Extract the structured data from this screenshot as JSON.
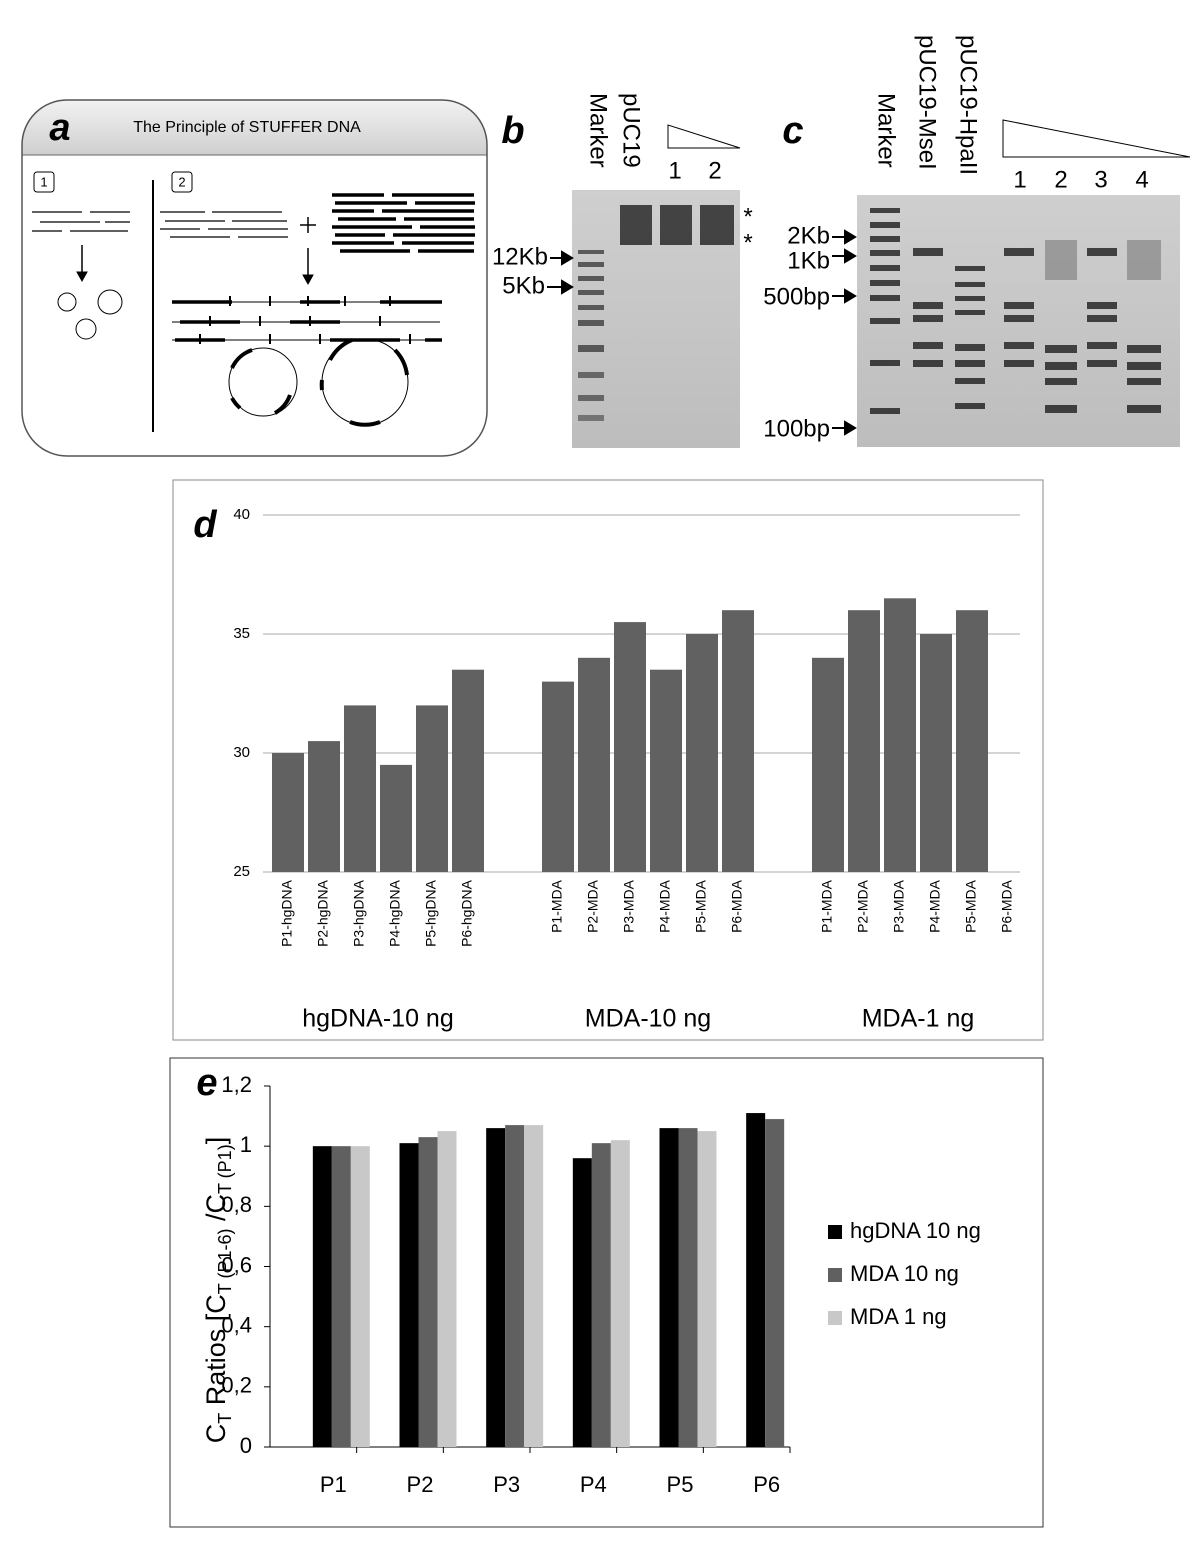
{
  "panels": {
    "a": {
      "letter": "a",
      "title": "The Principle of STUFFER DNA",
      "steps": [
        "1",
        "2"
      ]
    },
    "b": {
      "letter": "b",
      "lanes": [
        "Marker",
        "pUC19",
        "1",
        "2"
      ],
      "markers": [
        "12Kb",
        "5Kb"
      ],
      "stars": [
        "*",
        "*"
      ]
    },
    "c": {
      "letter": "c",
      "lanes": [
        "Marker",
        "pUC19-MseI",
        "pUC19-HpaII",
        "1",
        "2",
        "3",
        "4"
      ],
      "markers": [
        "2Kb",
        "1Kb",
        "500bp",
        "100bp"
      ]
    }
  },
  "chart_data": [
    {
      "type": "bar",
      "label": "d",
      "color": "#616161",
      "grid": true,
      "ylim": [
        25,
        40
      ],
      "yticks": [
        25,
        30,
        35,
        40
      ],
      "groups": [
        {
          "name": "hgDNA-10 ng",
          "categories": [
            "P1-hgDNA",
            "P2-hgDNA",
            "P3-hgDNA",
            "P4-hgDNA",
            "P5-hgDNA",
            "P6-hgDNA"
          ],
          "values": [
            30,
            30.5,
            32,
            29.5,
            32,
            33.5
          ]
        },
        {
          "name": "MDA-10 ng",
          "categories": [
            "P1-MDA",
            "P2-MDA",
            "P3-MDA",
            "P4-MDA",
            "P5-MDA",
            "P6-MDA"
          ],
          "values": [
            33,
            34,
            35.5,
            33.5,
            35,
            36
          ]
        },
        {
          "name": "MDA-1 ng",
          "categories": [
            "P1-MDA",
            "P2-MDA",
            "P3-MDA",
            "P4-MDA",
            "P5-MDA",
            "P6-MDA"
          ],
          "values": [
            34,
            36,
            36.5,
            35,
            36,
            null
          ]
        }
      ]
    },
    {
      "type": "bar",
      "label": "e",
      "grid": false,
      "ylabel": [
        "C",
        "T",
        " Ratios [C",
        "T (P1-6)",
        " /C",
        "T (P1)",
        "]"
      ],
      "ylim": [
        0,
        1.2
      ],
      "yticks": [
        0,
        {
          "value": 0.2,
          "label": "0,2"
        },
        {
          "value": 0.4,
          "label": "0,4"
        },
        {
          "value": 0.6,
          "label": "0,6"
        },
        {
          "value": 0.8,
          "label": "0,8"
        },
        1,
        {
          "value": 1.2,
          "label": "1,2"
        }
      ],
      "categories": [
        "P1",
        "P2",
        "P3",
        "P4",
        "P5",
        "P6"
      ],
      "legend": "right",
      "series": [
        {
          "name": "hgDNA 10 ng",
          "color": "#000000",
          "values": [
            1.0,
            1.01,
            1.06,
            0.96,
            1.06,
            1.11
          ]
        },
        {
          "name": "MDA 10 ng",
          "color": "#606060",
          "values": [
            1.0,
            1.03,
            1.07,
            1.01,
            1.06,
            1.09
          ]
        },
        {
          "name": "MDA 1 ng",
          "color": "#c8c8c8",
          "values": [
            1.0,
            1.05,
            1.07,
            1.02,
            1.05,
            null
          ]
        }
      ]
    }
  ]
}
